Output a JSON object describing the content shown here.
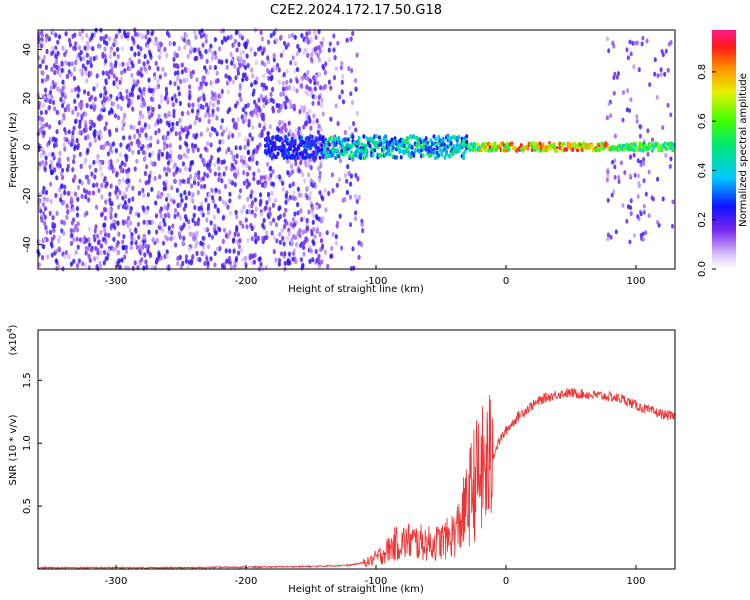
{
  "title": "C2E2.2024.172.17.50.G18",
  "colors": {
    "snr_line": "#ee3333",
    "spectrum_noise": "#7a2bf0",
    "spectrum_noise_light": "#d9c2fb"
  },
  "chart_data": [
    {
      "type": "heatmap",
      "title": "C2E2.2024.172.17.50.G18",
      "xlabel": "Height of straight line (km)",
      "ylabel": "Frequency (Hz)",
      "xlim": [
        -360,
        130
      ],
      "ylim": [
        -50,
        48
      ],
      "xticks": [
        -300,
        -200,
        -100,
        0,
        100
      ],
      "yticks": [
        -40,
        -20,
        0,
        20,
        40
      ],
      "colorbar": {
        "label": "Normalized spectral amplitude",
        "range": [
          0.0,
          0.97
        ],
        "ticks": [
          0.0,
          0.2,
          0.4,
          0.6,
          0.8
        ],
        "colormap": "rainbow-white-to-magenta"
      },
      "features": {
        "noise_region_x": [
          -360,
          -110
        ],
        "signal_track_frequency": 0,
        "signal_track_x": [
          -185,
          130
        ],
        "high_amplitude_x": [
          -20,
          80
        ],
        "peak_amplitude": 0.97
      }
    },
    {
      "type": "line",
      "xlabel": "Height of straight line (km)",
      "ylabel": "SNR (10 * v/v)",
      "yscale_label": "(x10",
      "yscale_exponent": "4",
      "yscale_suffix": ")",
      "xlim": [
        -360,
        130
      ],
      "ylim": [
        0.0,
        1.9
      ],
      "xticks": [
        -300,
        -200,
        -100,
        0,
        100
      ],
      "yticks": [
        0.5,
        1.0,
        1.5
      ],
      "series": [
        {
          "x": [
            -360,
            -300,
            -250,
            -200,
            -150,
            -120,
            -105,
            -95,
            -85,
            -75,
            -65,
            -55,
            -45,
            -38,
            -30,
            -25,
            -20,
            -15,
            -10,
            -5,
            0,
            10,
            20,
            30,
            40,
            50,
            60,
            70,
            80,
            90,
            100,
            110,
            120,
            130
          ],
          "values": [
            0.01,
            0.01,
            0.01,
            0.015,
            0.02,
            0.03,
            0.06,
            0.12,
            0.2,
            0.22,
            0.21,
            0.2,
            0.24,
            0.3,
            0.5,
            0.68,
            0.75,
            0.8,
            0.9,
            1.02,
            1.1,
            1.22,
            1.3,
            1.36,
            1.39,
            1.4,
            1.39,
            1.38,
            1.37,
            1.35,
            1.3,
            1.26,
            1.23,
            1.21
          ]
        }
      ]
    }
  ]
}
